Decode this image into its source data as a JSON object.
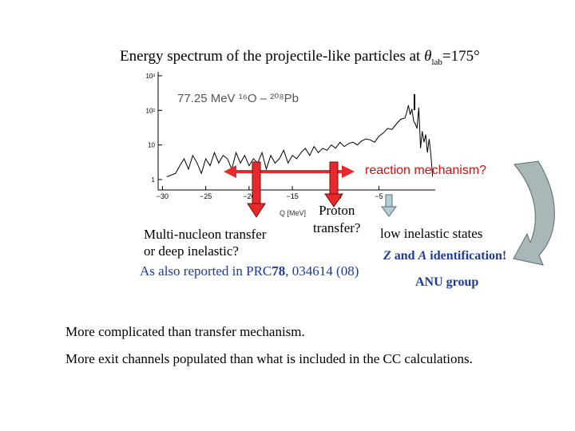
{
  "title": {
    "prefix": "Energy spectrum of the projectile-like particles at ",
    "theta": "θ",
    "sub": "lab",
    "suffix": "=175°"
  },
  "chart_data": {
    "type": "line",
    "title": "77.25 MeV ¹⁶O – ²⁰⁸Pb",
    "xlabel": "Q [MeV]",
    "ylabel": "",
    "xlim": [
      -30,
      0
    ],
    "yscale": "log",
    "ylim": [
      1,
      1000
    ],
    "xticks": [
      -30,
      -25,
      -20,
      -15,
      -10,
      -5
    ],
    "xtick_labels": [
      "−30",
      "−25",
      "−20",
      "−15",
      "−10",
      "−5"
    ],
    "yticks": [
      1,
      10,
      100,
      1000
    ],
    "ytick_labels": [
      "1",
      "10",
      "10²",
      "10³"
    ],
    "grid": false,
    "series": [
      {
        "name": "",
        "x": [
          -29.5,
          -28.5,
          -28,
          -27.5,
          -27,
          -26.5,
          -26,
          -25.5,
          -25,
          -24.5,
          -24,
          -23.5,
          -23,
          -22.5,
          -22,
          -21.5,
          -21,
          -20.5,
          -20,
          -19.5,
          -19,
          -18.5,
          -18,
          -17.5,
          -17,
          -16.5,
          -16,
          -15.5,
          -15,
          -14.5,
          -14,
          -13.5,
          -13,
          -12.5,
          -12,
          -11.5,
          -11,
          -10.5,
          -10,
          -9.5,
          -9,
          -8.5,
          -8,
          -7.5,
          -7,
          -6.5,
          -6,
          -5.5,
          -5,
          -4.5,
          -4,
          -3.5,
          -3,
          -2.5,
          -2,
          -1.8,
          -1.6,
          -1.4,
          -1.2,
          -1,
          -0.8,
          -0.6,
          -0.4,
          -0.2,
          0,
          0.2,
          0.4,
          0.6,
          0.8,
          1,
          1.2
        ],
        "values": [
          1.2,
          1.5,
          2.5,
          4,
          2,
          5,
          3,
          1.5,
          4,
          2.5,
          6,
          3,
          5,
          4,
          2,
          6,
          3,
          5,
          2.5,
          4,
          3,
          6,
          2,
          5,
          3,
          4,
          7,
          3,
          5,
          4,
          6,
          8,
          5,
          9,
          6,
          8,
          7,
          10,
          8,
          12,
          9,
          11,
          12,
          10,
          13,
          15,
          14,
          12,
          18,
          22,
          30,
          28,
          40,
          55,
          60,
          85,
          140,
          75,
          110,
          50,
          40,
          30,
          120,
          8,
          25,
          12,
          20,
          6,
          15,
          5,
          1.2
        ]
      }
    ]
  },
  "annotations": {
    "reaction_mechanism": "reaction mechanism?",
    "multi_line1": "Multi-nucleon transfer",
    "multi_line2": "or deep inelastic?",
    "proton_line1": "Proton",
    "proton_line2": "transfer?",
    "low_inelastic": "low inelastic states",
    "reported_prefix": "As also reported in PRC",
    "reported_bold": "78",
    "reported_suffix": ", 034614 (08)",
    "z_letter": "Z",
    "z_and": " and ",
    "a_letter": "A",
    "identification": " identification!",
    "anu_group": "ANU group",
    "more1": "More complicated than transfer mechanism.",
    "more2": "More exit channels populated than what is included in the CC calculations."
  },
  "colors": {
    "arrow_red": "#e8282a",
    "arrow_red_outline": "#6b1010",
    "reaction_text": "#d01010",
    "blue_text": "#1f3a99",
    "curved_arrow_fill": "#a8b8b8",
    "small_arrow_fill": "#b8ccd4"
  }
}
